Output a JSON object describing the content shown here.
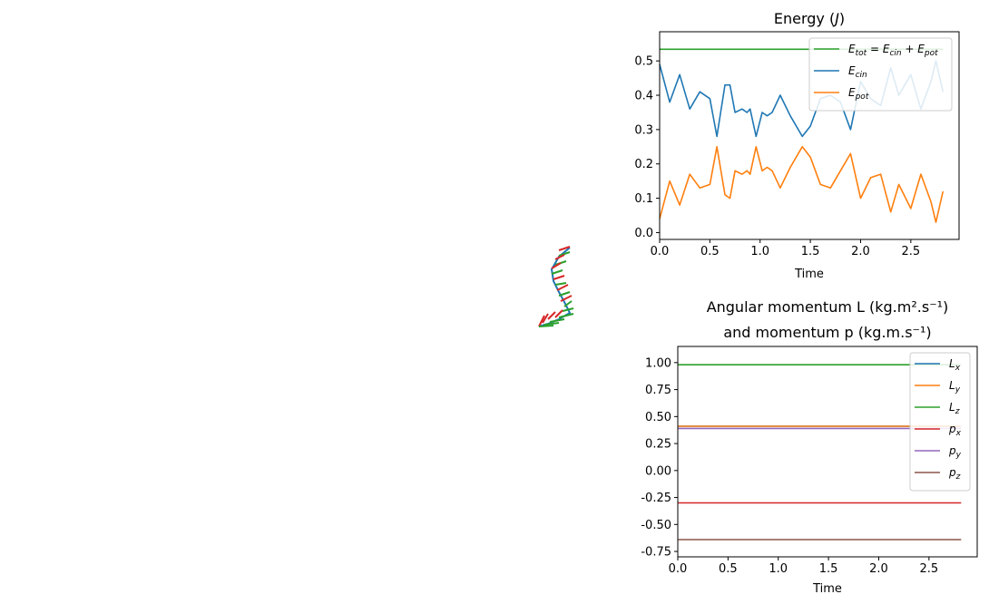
{
  "chart_data": [
    {
      "type": "line",
      "title": "Energy (J)",
      "xlabel": "Time",
      "ylabel": "",
      "xlim": [
        0,
        2.98
      ],
      "ylim": [
        -0.02,
        0.585
      ],
      "xticks": [
        "0.0",
        "0.5",
        "1.0",
        "1.5",
        "2.0",
        "2.5"
      ],
      "yticks": [
        "0.0",
        "0.1",
        "0.2",
        "0.3",
        "0.4",
        "0.5"
      ],
      "legend_position": "top-right",
      "series": [
        {
          "name": "E_tot = E_cin + E_pot",
          "color": "#2ca02c",
          "x": [
            0,
            0.5,
            1.0,
            1.5,
            2.0,
            2.5,
            2.82
          ],
          "y": [
            0.534,
            0.534,
            0.534,
            0.534,
            0.534,
            0.534,
            0.534
          ]
        },
        {
          "name": "E_cin",
          "color": "#1f77b4",
          "x": [
            0,
            0.1,
            0.2,
            0.3,
            0.4,
            0.5,
            0.57,
            0.65,
            0.7,
            0.75,
            0.82,
            0.87,
            0.9,
            0.96,
            1.02,
            1.07,
            1.12,
            1.2,
            1.3,
            1.42,
            1.5,
            1.6,
            1.7,
            1.8,
            1.9,
            2.0,
            2.1,
            2.2,
            2.3,
            2.38,
            2.5,
            2.6,
            2.7,
            2.75,
            2.82
          ],
          "y": [
            0.49,
            0.38,
            0.46,
            0.36,
            0.41,
            0.39,
            0.28,
            0.43,
            0.43,
            0.35,
            0.36,
            0.35,
            0.36,
            0.28,
            0.35,
            0.34,
            0.35,
            0.4,
            0.34,
            0.28,
            0.31,
            0.39,
            0.4,
            0.38,
            0.3,
            0.44,
            0.39,
            0.37,
            0.48,
            0.4,
            0.46,
            0.36,
            0.44,
            0.5,
            0.41
          ]
        },
        {
          "name": "E_pot",
          "color": "#ff7f0e",
          "x": [
            0,
            0.1,
            0.2,
            0.3,
            0.4,
            0.5,
            0.57,
            0.65,
            0.7,
            0.75,
            0.82,
            0.87,
            0.9,
            0.96,
            1.02,
            1.07,
            1.12,
            1.2,
            1.3,
            1.42,
            1.5,
            1.6,
            1.7,
            1.8,
            1.9,
            2.0,
            2.1,
            2.2,
            2.3,
            2.38,
            2.5,
            2.6,
            2.7,
            2.75,
            2.82
          ],
          "y": [
            0.04,
            0.15,
            0.08,
            0.17,
            0.13,
            0.14,
            0.25,
            0.11,
            0.1,
            0.18,
            0.17,
            0.18,
            0.17,
            0.25,
            0.18,
            0.19,
            0.18,
            0.13,
            0.19,
            0.25,
            0.22,
            0.14,
            0.13,
            0.18,
            0.23,
            0.1,
            0.16,
            0.17,
            0.06,
            0.14,
            0.07,
            0.17,
            0.09,
            0.03,
            0.12
          ]
        }
      ]
    },
    {
      "type": "line",
      "title_line1": "Angular momentum L (kg.m².s⁻¹)",
      "title_line2": "and momentum p (kg.m.s⁻¹)",
      "xlabel": "Time",
      "ylabel": "",
      "xlim": [
        0,
        2.98
      ],
      "ylim": [
        -0.8,
        1.15
      ],
      "xticks": [
        "0.0",
        "0.5",
        "1.0",
        "1.5",
        "2.0",
        "2.5"
      ],
      "yticks": [
        "1.00",
        "0.75",
        "0.50",
        "0.25",
        "0.00",
        "-0.25",
        "-0.50",
        "-0.75"
      ],
      "legend_position": "top-right",
      "series": [
        {
          "name": "L_x",
          "color": "#1f77b4",
          "x": [
            0,
            2.82
          ],
          "y": [
            0.41,
            0.41
          ]
        },
        {
          "name": "L_y",
          "color": "#ff7f0e",
          "x": [
            0,
            2.82
          ],
          "y": [
            0.41,
            0.41
          ]
        },
        {
          "name": "L_z",
          "color": "#2ca02c",
          "x": [
            0,
            2.82
          ],
          "y": [
            0.98,
            0.98
          ]
        },
        {
          "name": "p_x",
          "color": "#d62728",
          "x": [
            0,
            2.82
          ],
          "y": [
            -0.3,
            -0.3
          ]
        },
        {
          "name": "p_y",
          "color": "#9467bd",
          "x": [
            0,
            2.82
          ],
          "y": [
            0.39,
            0.39
          ]
        },
        {
          "name": "p_z",
          "color": "#8c564b",
          "x": [
            0,
            2.82
          ],
          "y": [
            -0.64,
            -0.64
          ]
        }
      ]
    }
  ]
}
